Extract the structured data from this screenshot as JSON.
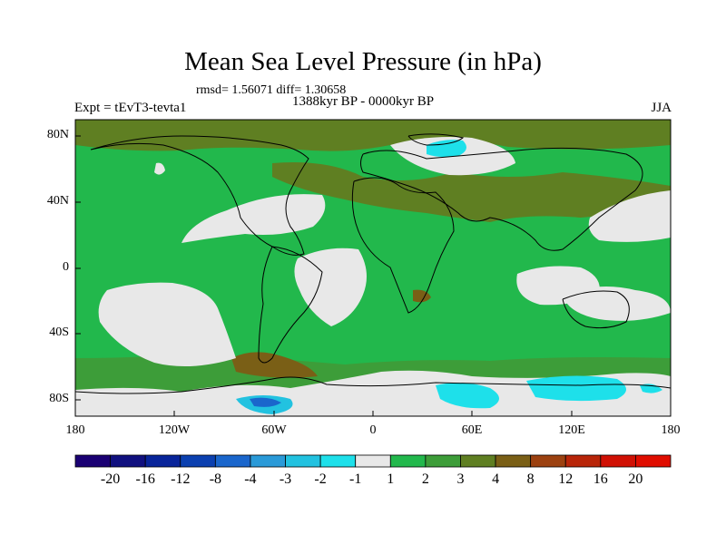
{
  "title": "Mean Sea Level Pressure (in hPa)",
  "stats": "rmsd= 1.56071 diff= 1.30658",
  "expt_label": "Expt = tEvT3-tevta1",
  "period_label": "1388kyr BP - 0000kyr BP",
  "season_label": "JJA",
  "lat_labels": [
    "80N",
    "40N",
    "0",
    "40S",
    "80S"
  ],
  "lon_labels": [
    "180",
    "120W",
    "60W",
    "0",
    "60E",
    "120E",
    "180"
  ],
  "colorbar": {
    "labels": [
      "-20",
      "-16",
      "-12",
      "-8",
      "-4",
      "-3",
      "-2",
      "-1",
      "1",
      "2",
      "3",
      "4",
      "8",
      "12",
      "16",
      "20"
    ],
    "colors": [
      "#1a0073",
      "#10107f",
      "#08249a",
      "#0b40b0",
      "#1a66cc",
      "#2a9ad8",
      "#22c2e0",
      "#1ee0ea",
      "#e8e8e8",
      "#22b84c",
      "#3d9d39",
      "#5f7f22",
      "#7a5f16",
      "#9c4110",
      "#b82509",
      "#d01004",
      "#e00d00"
    ]
  }
}
